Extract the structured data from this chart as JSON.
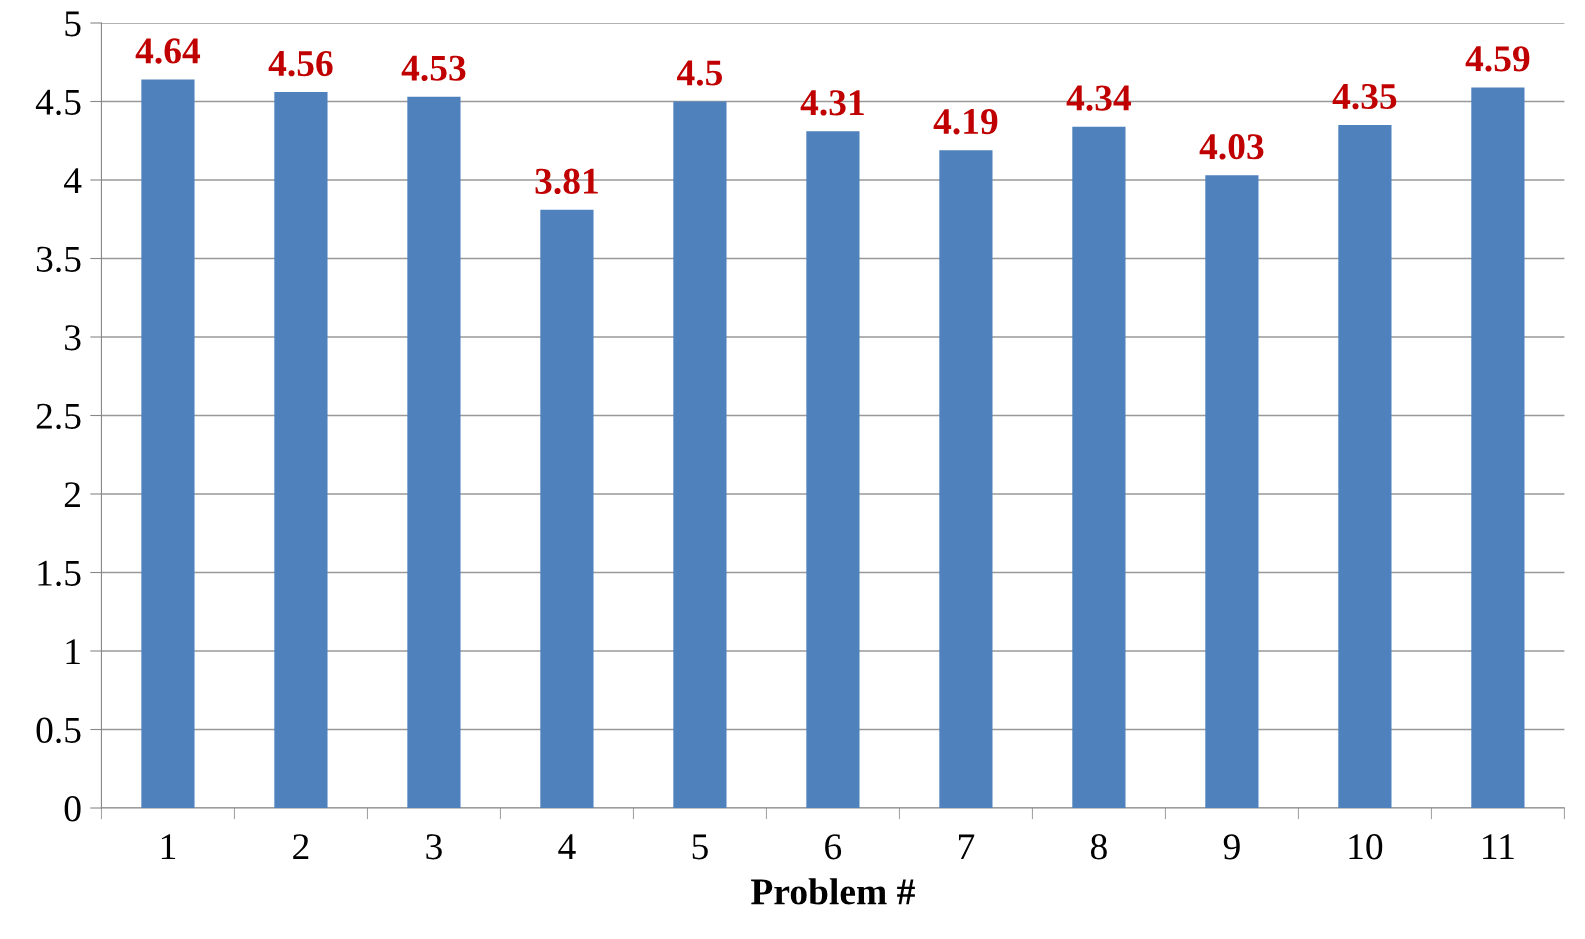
{
  "chart_data": {
    "type": "bar",
    "xlabel": "Problem #",
    "categories": [
      "1",
      "2",
      "3",
      "4",
      "5",
      "6",
      "7",
      "8",
      "9",
      "10",
      "11"
    ],
    "values": [
      4.64,
      4.56,
      4.53,
      3.81,
      4.5,
      4.31,
      4.19,
      4.34,
      4.03,
      4.35,
      4.59
    ],
    "color": "#4f81bd",
    "data_labels": true,
    "ylim": [
      0,
      5
    ],
    "yticks": [
      0,
      0.5,
      1,
      1.5,
      2,
      2.5,
      3,
      3.5,
      4,
      4.5,
      5
    ],
    "grid": "y",
    "legend": false
  }
}
